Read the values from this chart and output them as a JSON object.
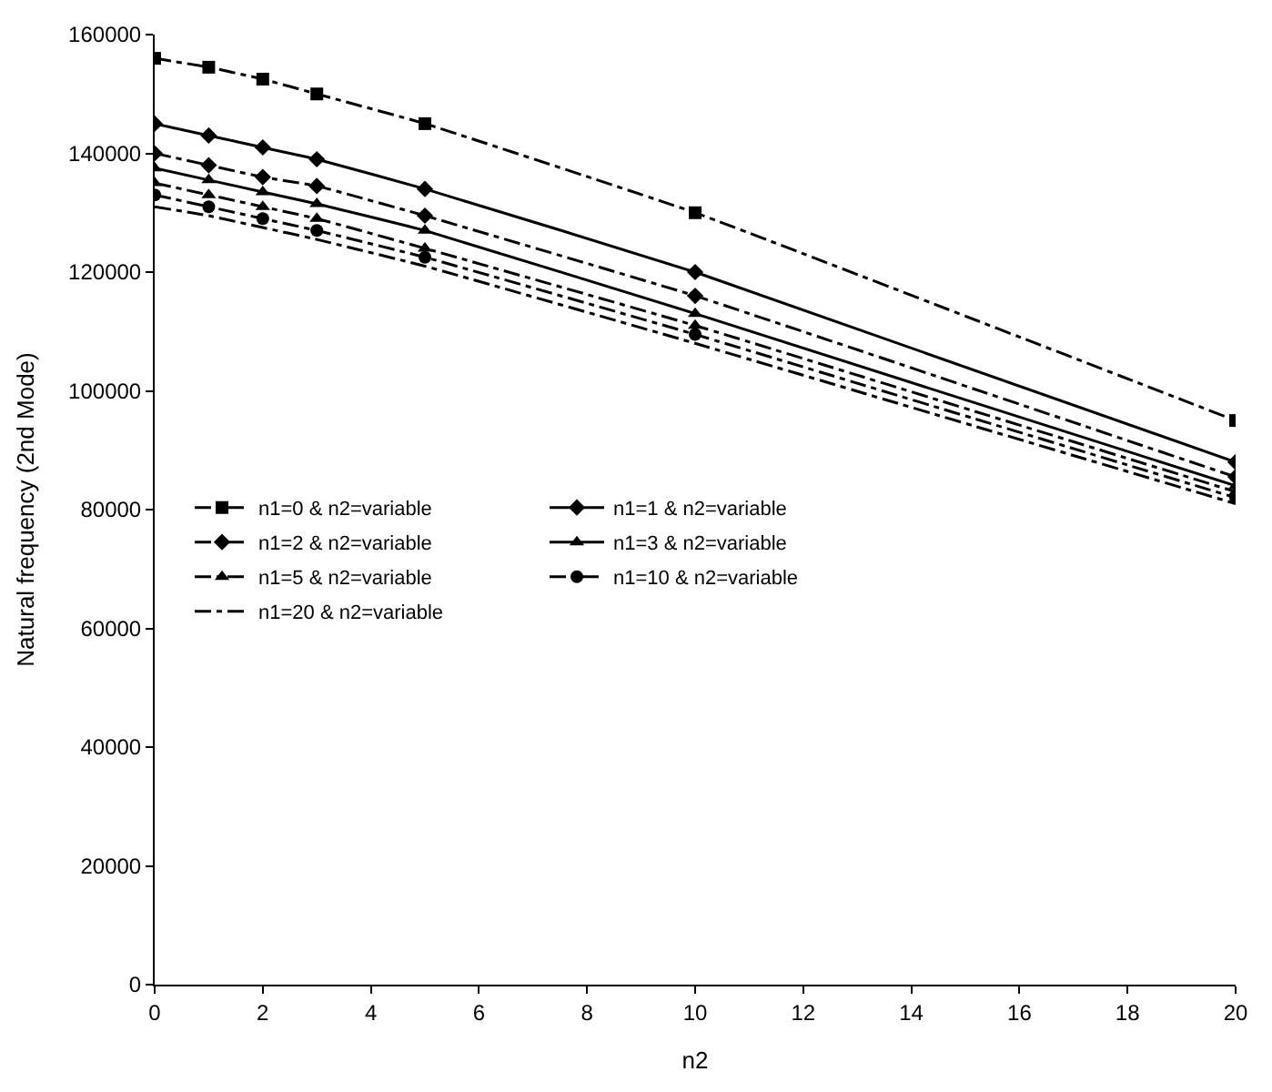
{
  "chart_data": {
    "type": "line",
    "xlabel": "n2",
    "ylabel": "Natural frequency (2nd Mode)",
    "xlim": [
      0,
      20
    ],
    "xticks": [
      0,
      2,
      4,
      6,
      8,
      10,
      12,
      14,
      16,
      18,
      20
    ],
    "ylim": [
      0,
      160000
    ],
    "yticks": [
      0,
      20000,
      40000,
      60000,
      80000,
      100000,
      120000,
      140000,
      160000
    ],
    "x": [
      0,
      1,
      2,
      3,
      5,
      10,
      20
    ],
    "legend": "left",
    "series": [
      {
        "name": "n1=0 & n2=variable",
        "color": "#000000",
        "marker": "square",
        "line_style": "dashed",
        "values": [
          156000,
          154500,
          152500,
          150000,
          145000,
          130000,
          95000
        ]
      },
      {
        "name": "n1=1 & n2=variable",
        "color": "#000000",
        "marker": "diamond",
        "line_style": "solid",
        "values": [
          145000,
          143000,
          141000,
          139000,
          134000,
          120000,
          88000
        ]
      },
      {
        "name": "n1=2 & n2=variable",
        "color": "#000000",
        "marker": "diamond",
        "line_style": "dashed",
        "values": [
          140000,
          138000,
          136000,
          134500,
          129500,
          116000,
          85500
        ]
      },
      {
        "name": "n1=3 & n2=variable",
        "color": "#000000",
        "marker": "triangle",
        "line_style": "solid",
        "values": [
          137500,
          135500,
          133500,
          131500,
          127000,
          113000,
          84000
        ]
      },
      {
        "name": "n1=5 & n2=variable",
        "color": "#000000",
        "marker": "triangle",
        "line_style": "dashed",
        "values": [
          135000,
          133000,
          131000,
          129000,
          124000,
          111000,
          83000
        ]
      },
      {
        "name": "n1=10 & n2=variable",
        "color": "#000000",
        "marker": "circle",
        "line_style": "dashed",
        "values": [
          133000,
          131000,
          129000,
          127000,
          122500,
          109500,
          82000
        ]
      },
      {
        "name": "n1=20 & n2=variable",
        "color": "#000000",
        "marker": "none",
        "line_style": "dashed",
        "values": [
          131000,
          129500,
          127500,
          125500,
          121000,
          108000,
          81000
        ]
      }
    ]
  }
}
